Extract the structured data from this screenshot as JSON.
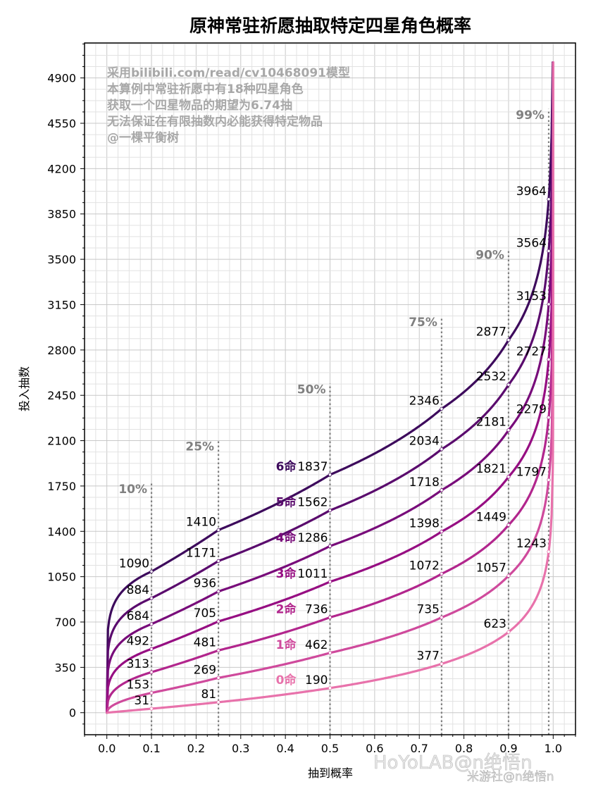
{
  "chart_data": {
    "type": "line",
    "title": "原神常驻祈愿抽取特定四星角色概率",
    "xlabel": "抽到概率",
    "ylabel": "投入抽数",
    "xlim": [
      -0.05,
      1.05
    ],
    "ylim": [
      -170,
      5170
    ],
    "xticks": [
      "0.0",
      "0.1",
      "0.2",
      "0.3",
      "0.4",
      "0.5",
      "0.6",
      "0.7",
      "0.8",
      "0.9",
      "1.0"
    ],
    "yticks": [
      "0",
      "350",
      "700",
      "1050",
      "1400",
      "1750",
      "2100",
      "2450",
      "2800",
      "3150",
      "3500",
      "3850",
      "4200",
      "4550",
      "4900"
    ],
    "grid": true,
    "annotations": [
      "采用bilibili.com/read/cv10468091模型",
      "本算例中常驻祈愿中有18种四星角色",
      "获取一个四星物品的期望为6.74抽",
      "无法保证在有限抽数内必能获得特定物品",
      "@一棵平衡树"
    ],
    "reference_lines": [
      {
        "x": 0.1,
        "label": "10%",
        "top": 1770
      },
      {
        "x": 0.25,
        "label": "25%",
        "top": 2100
      },
      {
        "x": 0.5,
        "label": "50%",
        "top": 2540
      },
      {
        "x": 0.75,
        "label": "75%",
        "top": 3060
      },
      {
        "x": 0.9,
        "label": "90%",
        "top": 3580
      },
      {
        "x": 0.99,
        "label": "99%",
        "top": 4660
      }
    ],
    "x": [
      0.1,
      0.25,
      0.5,
      0.75,
      0.9,
      0.99
    ],
    "series": [
      {
        "name": "6命",
        "color": "#3d0a5c",
        "values": [
          1090,
          1410,
          1837,
          2346,
          2877,
          3964
        ]
      },
      {
        "name": "5命",
        "color": "#5a0b6d",
        "values": [
          884,
          1171,
          1562,
          2034,
          2532,
          3564
        ]
      },
      {
        "name": "4命",
        "color": "#780c7a",
        "values": [
          684,
          936,
          1286,
          1718,
          2181,
          3153
        ]
      },
      {
        "name": "3命",
        "color": "#960e82",
        "values": [
          492,
          705,
          1011,
          1398,
          1821,
          2727
        ]
      },
      {
        "name": "2命",
        "color": "#b2268d",
        "values": [
          313,
          481,
          736,
          1072,
          1449,
          2279
        ]
      },
      {
        "name": "1命",
        "color": "#cf4a9c",
        "values": [
          153,
          269,
          462,
          735,
          1057,
          1797
        ]
      },
      {
        "name": "0命",
        "color": "#e872ab",
        "values": [
          31,
          81,
          190,
          377,
          623,
          1243
        ]
      }
    ]
  },
  "watermark": {
    "line1": "HoYoLAB@n绝悟n",
    "line2": "米游社@n绝悟n"
  }
}
